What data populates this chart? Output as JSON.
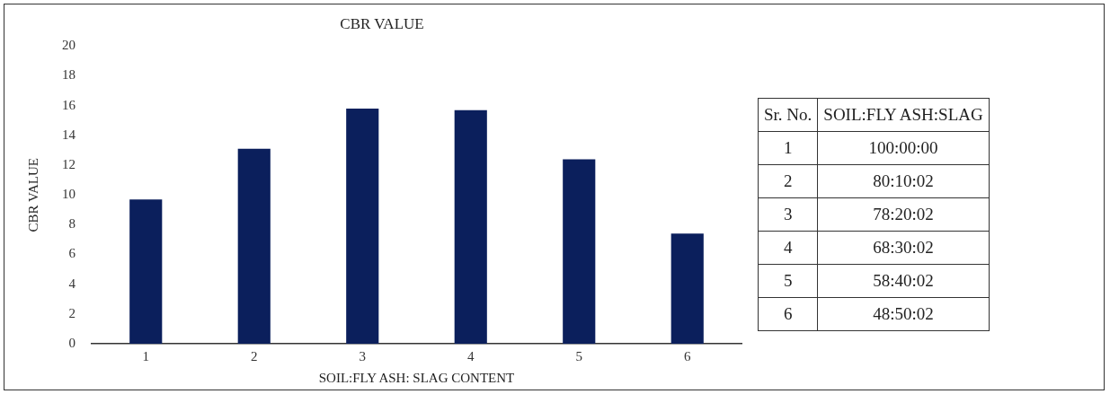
{
  "chart_data": {
    "type": "bar",
    "title": "CBR VALUE",
    "xlabel": "SOIL:FLY ASH: SLAG CONTENT",
    "ylabel": "CBR VALUE",
    "categories": [
      "1",
      "2",
      "3",
      "4",
      "5",
      "6"
    ],
    "values": [
      9.7,
      13.1,
      15.8,
      15.7,
      12.4,
      7.4
    ],
    "color": "#0b1f5c",
    "ylim": [
      0,
      20
    ],
    "yticks": [
      0,
      2,
      4,
      6,
      8,
      10,
      12,
      14,
      16,
      18,
      20
    ],
    "grid": false,
    "annotations": [
      "Sr. No.",
      "SOIL:FLY ASH:SLAG",
      "1",
      "100:00:00",
      "2",
      "80:10:02",
      "3",
      "78:20:02",
      "4",
      "68:30:02",
      "5",
      "58:40:02",
      "6",
      "48:50:02"
    ]
  }
}
